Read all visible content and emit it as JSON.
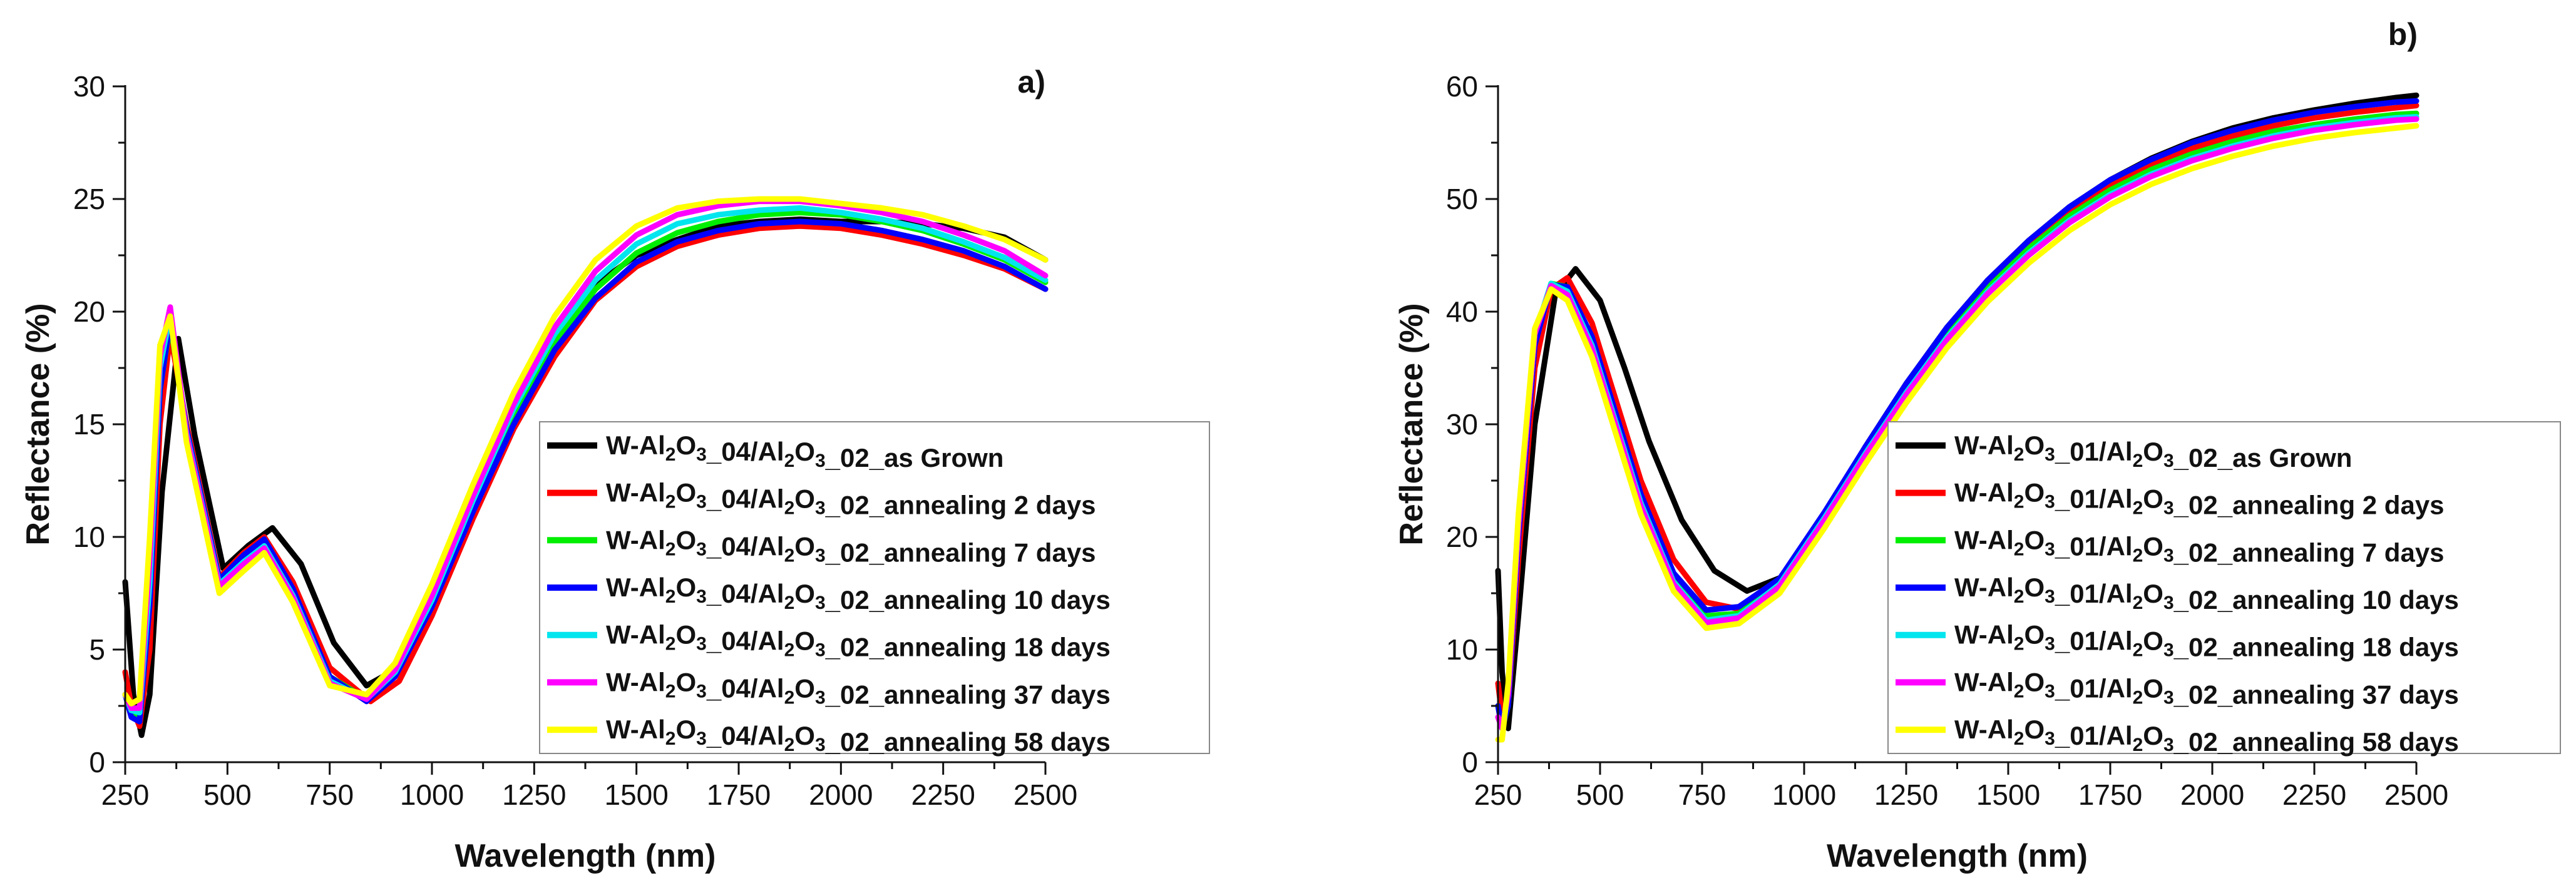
{
  "chart_data": [
    {
      "type": "line",
      "panel_label": "a)",
      "xlabel": "Wavelength (nm)",
      "ylabel": "Reflectance (%)",
      "xlim": [
        250,
        2500
      ],
      "ylim": [
        0,
        30
      ],
      "xticks": [
        250,
        500,
        750,
        1000,
        1250,
        1500,
        1750,
        2000,
        2250,
        2500
      ],
      "yticks": [
        0,
        5,
        10,
        15,
        20,
        25,
        30
      ],
      "legend_position": "lower-right",
      "series": [
        {
          "name": "W-Al2O3_04/Al2O3_02_as Grown",
          "color": "#000000",
          "x": [
            250,
            270,
            290,
            310,
            340,
            380,
            420,
            490,
            550,
            610,
            680,
            760,
            840,
            900,
            1000,
            1100,
            1200,
            1300,
            1400,
            1500,
            1600,
            1700,
            1800,
            1900,
            2000,
            2100,
            2200,
            2300,
            2400,
            2500
          ],
          "y": [
            8,
            3,
            1.2,
            3,
            12,
            18.8,
            14.5,
            8.6,
            9.6,
            10.4,
            8.8,
            5.3,
            3.4,
            4.0,
            7.6,
            11.7,
            15.6,
            18.9,
            21.2,
            22.5,
            23.2,
            23.8,
            24.0,
            24.1,
            24.0,
            24.0,
            23.9,
            23.7,
            23.3,
            22.3
          ]
        },
        {
          "name": "W-Al2O3_04/Al2O3_02_annealing 2 days",
          "color": "#ff0000",
          "x": [
            250,
            265,
            285,
            310,
            335,
            360,
            400,
            480,
            540,
            590,
            660,
            750,
            850,
            920,
            1000,
            1100,
            1200,
            1300,
            1400,
            1500,
            1600,
            1700,
            1800,
            1900,
            2000,
            2100,
            2200,
            2300,
            2400,
            2500
          ],
          "y": [
            4,
            2.5,
            1.6,
            5,
            15,
            19.0,
            15.0,
            8.2,
            9.3,
            10.0,
            8.0,
            4.2,
            2.7,
            3.6,
            6.5,
            10.8,
            14.8,
            18.0,
            20.5,
            22.0,
            22.9,
            23.4,
            23.7,
            23.8,
            23.7,
            23.4,
            23.0,
            22.5,
            21.9,
            21.0
          ]
        },
        {
          "name": "W-Al2O3_04/Al2O3_02_annealing 7 days",
          "color": "#00ee00",
          "x": [
            250,
            265,
            285,
            310,
            335,
            360,
            400,
            480,
            540,
            590,
            660,
            750,
            840,
            910,
            1000,
            1100,
            1200,
            1300,
            1400,
            1500,
            1600,
            1700,
            1800,
            1900,
            2000,
            2100,
            2200,
            2300,
            2400,
            2500
          ],
          "y": [
            3,
            2.2,
            2.0,
            7,
            16.5,
            19.5,
            14.8,
            8.0,
            9.1,
            9.8,
            7.6,
            3.8,
            2.8,
            3.9,
            7.0,
            11.3,
            15.3,
            18.6,
            21.0,
            22.6,
            23.5,
            24.0,
            24.3,
            24.4,
            24.3,
            24.0,
            23.6,
            23.0,
            22.3,
            21.3
          ]
        },
        {
          "name": "W-Al2O3_04/Al2O3_02_annealing 10 days",
          "color": "#0000ff",
          "x": [
            250,
            265,
            285,
            310,
            335,
            360,
            400,
            480,
            540,
            590,
            660,
            750,
            840,
            910,
            1000,
            1100,
            1200,
            1300,
            1400,
            1500,
            1600,
            1700,
            1800,
            1900,
            2000,
            2100,
            2200,
            2300,
            2400,
            2500
          ],
          "y": [
            3,
            2.0,
            1.8,
            7,
            16.5,
            19.6,
            14.8,
            8.1,
            9.2,
            9.9,
            7.7,
            3.8,
            2.7,
            3.8,
            6.9,
            11.1,
            15.0,
            18.3,
            20.6,
            22.2,
            23.1,
            23.6,
            23.9,
            24.0,
            23.9,
            23.6,
            23.2,
            22.7,
            22.0,
            21.0
          ]
        },
        {
          "name": "W-Al2O3_04/Al2O3_02_annealing 18 days",
          "color": "#00e5ee",
          "x": [
            250,
            265,
            285,
            310,
            335,
            360,
            400,
            480,
            540,
            590,
            660,
            750,
            840,
            910,
            1000,
            1100,
            1200,
            1300,
            1400,
            1500,
            1600,
            1700,
            1800,
            1900,
            2000,
            2100,
            2200,
            2300,
            2400,
            2500
          ],
          "y": [
            3,
            2.3,
            2.2,
            8,
            17.5,
            19.9,
            14.6,
            7.9,
            8.9,
            9.6,
            7.4,
            3.6,
            2.8,
            4.0,
            7.2,
            11.6,
            15.7,
            19.0,
            21.4,
            23.0,
            23.9,
            24.3,
            24.5,
            24.6,
            24.4,
            24.1,
            23.7,
            23.1,
            22.4,
            21.4
          ]
        },
        {
          "name": "W-Al2O3_04/Al2O3_02_annealing 37 days",
          "color": "#ff00ff",
          "x": [
            250,
            265,
            285,
            310,
            335,
            360,
            400,
            480,
            540,
            590,
            660,
            750,
            840,
            910,
            1000,
            1100,
            1200,
            1300,
            1400,
            1500,
            1600,
            1700,
            1800,
            1900,
            2000,
            2100,
            2200,
            2300,
            2400,
            2500
          ],
          "y": [
            3,
            2.4,
            2.4,
            9,
            18.0,
            20.2,
            14.5,
            7.8,
            8.8,
            9.5,
            7.3,
            3.5,
            2.8,
            4.1,
            7.4,
            11.8,
            15.9,
            19.3,
            21.8,
            23.4,
            24.3,
            24.7,
            24.9,
            24.9,
            24.7,
            24.4,
            24.0,
            23.4,
            22.7,
            21.6
          ]
        },
        {
          "name": "W-Al2O3_04/Al2O3_02_annealing 58 days",
          "color": "#ffff00",
          "x": [
            250,
            265,
            285,
            310,
            335,
            360,
            400,
            480,
            540,
            590,
            660,
            750,
            840,
            910,
            1000,
            1100,
            1200,
            1300,
            1400,
            1500,
            1600,
            1700,
            1800,
            1900,
            2000,
            2100,
            2200,
            2300,
            2400,
            2500
          ],
          "y": [
            3,
            2.6,
            2.8,
            10,
            18.5,
            19.8,
            14.2,
            7.5,
            8.5,
            9.3,
            7.1,
            3.4,
            3.0,
            4.4,
            7.9,
            12.3,
            16.4,
            19.8,
            22.3,
            23.8,
            24.6,
            24.9,
            25.0,
            25.0,
            24.8,
            24.6,
            24.3,
            23.8,
            23.2,
            22.3
          ]
        }
      ]
    },
    {
      "type": "line",
      "panel_label": "b)",
      "xlabel": "Wavelength (nm)",
      "ylabel": "Reflectance (%)",
      "xlim": [
        250,
        2500
      ],
      "ylim": [
        0,
        60
      ],
      "xticks": [
        250,
        500,
        750,
        1000,
        1250,
        1500,
        1750,
        2000,
        2250,
        2500
      ],
      "yticks": [
        0,
        10,
        20,
        30,
        40,
        50,
        60
      ],
      "legend_position": "lower-right",
      "series": [
        {
          "name": "W-Al2O3_01/Al2O3_02_as Grown",
          "color": "#000000",
          "x": [
            250,
            260,
            275,
            300,
            340,
            390,
            440,
            500,
            560,
            620,
            700,
            780,
            860,
            950,
            1050,
            1150,
            1250,
            1350,
            1450,
            1550,
            1650,
            1750,
            1850,
            1950,
            2050,
            2150,
            2250,
            2350,
            2450,
            2500
          ],
          "y": [
            17,
            8,
            3,
            13,
            30,
            41.5,
            43.8,
            41.0,
            35.0,
            28.5,
            21.5,
            17.0,
            15.2,
            16.5,
            22.0,
            28.0,
            33.6,
            38.6,
            42.8,
            46.3,
            49.3,
            51.7,
            53.6,
            55.1,
            56.3,
            57.2,
            57.9,
            58.5,
            59.0,
            59.2
          ]
        },
        {
          "name": "W-Al2O3_01/Al2O3_02_annealing 2 days",
          "color": "#ff0000",
          "x": [
            250,
            260,
            275,
            300,
            340,
            380,
            420,
            480,
            540,
            600,
            680,
            760,
            840,
            940,
            1050,
            1150,
            1250,
            1350,
            1450,
            1550,
            1650,
            1750,
            1850,
            1950,
            2050,
            2150,
            2250,
            2350,
            2450,
            2500
          ],
          "y": [
            7,
            4,
            5,
            18,
            35,
            42.0,
            43.0,
            39.0,
            32.0,
            25.0,
            18.0,
            14.2,
            13.6,
            16.0,
            22.0,
            27.8,
            33.3,
            38.2,
            42.3,
            45.8,
            48.8,
            51.2,
            53.0,
            54.5,
            55.6,
            56.5,
            57.2,
            57.7,
            58.1,
            58.3
          ]
        },
        {
          "name": "W-Al2O3_01/Al2O3_02_annealing 7 days",
          "color": "#00ee00",
          "x": [
            250,
            260,
            275,
            300,
            340,
            380,
            420,
            480,
            540,
            600,
            680,
            760,
            840,
            940,
            1050,
            1150,
            1250,
            1350,
            1450,
            1550,
            1650,
            1750,
            1850,
            1950,
            2050,
            2150,
            2250,
            2350,
            2450,
            2500
          ],
          "y": [
            5,
            3,
            5,
            20,
            37,
            42.5,
            42.2,
            37.5,
            30.5,
            23.5,
            16.5,
            13.0,
            13.2,
            16.0,
            22.0,
            27.7,
            33.1,
            38.0,
            42.1,
            45.6,
            48.5,
            50.8,
            52.6,
            54.0,
            55.1,
            56.0,
            56.6,
            57.1,
            57.5,
            57.6
          ]
        },
        {
          "name": "W-Al2O3_01/Al2O3_02_annealing 10 days",
          "color": "#0000ff",
          "x": [
            250,
            260,
            275,
            300,
            340,
            380,
            420,
            480,
            540,
            600,
            680,
            760,
            840,
            940,
            1050,
            1150,
            1250,
            1350,
            1450,
            1550,
            1650,
            1750,
            1850,
            1950,
            2050,
            2150,
            2250,
            2350,
            2450,
            2500
          ],
          "y": [
            5,
            3,
            5,
            20,
            37,
            42.4,
            42.2,
            37.8,
            30.8,
            23.8,
            16.8,
            13.5,
            13.8,
            16.3,
            22.2,
            28.0,
            33.6,
            38.6,
            42.8,
            46.3,
            49.3,
            51.7,
            53.5,
            55.0,
            56.1,
            57.0,
            57.7,
            58.2,
            58.6,
            58.7
          ]
        },
        {
          "name": "W-Al2O3_01/Al2O3_02_annealing 18 days",
          "color": "#00e5ee",
          "x": [
            250,
            260,
            275,
            300,
            340,
            380,
            420,
            480,
            540,
            600,
            680,
            760,
            840,
            940,
            1050,
            1150,
            1250,
            1350,
            1450,
            1550,
            1650,
            1750,
            1850,
            1950,
            2050,
            2150,
            2250,
            2350,
            2450,
            2500
          ],
          "y": [
            4,
            3,
            6,
            21,
            38,
            42.5,
            41.8,
            37.0,
            30.0,
            23.0,
            16.0,
            12.6,
            13.0,
            15.8,
            21.7,
            27.4,
            32.8,
            37.7,
            41.8,
            45.2,
            48.1,
            50.4,
            52.2,
            53.6,
            54.7,
            55.6,
            56.3,
            56.8,
            57.2,
            57.3
          ]
        },
        {
          "name": "W-Al2O3_01/Al2O3_02_annealing 37 days",
          "color": "#ff00ff",
          "x": [
            250,
            260,
            275,
            300,
            340,
            380,
            420,
            480,
            540,
            600,
            680,
            760,
            840,
            940,
            1050,
            1150,
            1250,
            1350,
            1450,
            1550,
            1650,
            1750,
            1850,
            1950,
            2050,
            2150,
            2250,
            2350,
            2450,
            2500
          ],
          "y": [
            4,
            3,
            6,
            21,
            38,
            42.3,
            41.5,
            36.7,
            29.7,
            22.7,
            15.8,
            12.4,
            12.8,
            15.6,
            21.5,
            27.2,
            32.6,
            37.5,
            41.6,
            45.0,
            47.9,
            50.2,
            52.0,
            53.4,
            54.5,
            55.4,
            56.1,
            56.6,
            57.0,
            57.1
          ]
        },
        {
          "name": "W-Al2O3_01/Al2O3_02_annealing 58 days",
          "color": "#ffff00",
          "x": [
            250,
            260,
            275,
            300,
            340,
            380,
            420,
            480,
            540,
            600,
            680,
            760,
            840,
            940,
            1050,
            1150,
            1250,
            1350,
            1450,
            1550,
            1650,
            1750,
            1850,
            1950,
            2050,
            2150,
            2250,
            2350,
            2450,
            2500
          ],
          "y": [
            2,
            2,
            7,
            22,
            38.5,
            42.0,
            41.0,
            36.0,
            29.0,
            22.0,
            15.2,
            11.9,
            12.3,
            15.0,
            20.8,
            26.5,
            31.9,
            36.8,
            40.9,
            44.3,
            47.2,
            49.5,
            51.3,
            52.7,
            53.8,
            54.7,
            55.4,
            55.9,
            56.3,
            56.5
          ]
        }
      ]
    }
  ]
}
